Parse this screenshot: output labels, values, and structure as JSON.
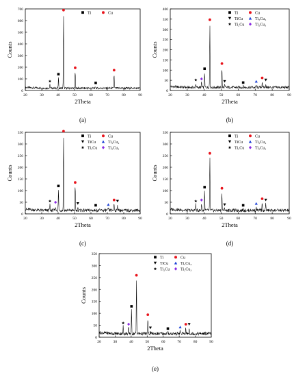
{
  "markers": {
    "Ti": {
      "symbol": "square",
      "color": "#000000"
    },
    "Cu": {
      "symbol": "circle",
      "color": "#e8141c"
    },
    "TiCu": {
      "symbol": "triangle-down",
      "color": "#000000"
    },
    "Ti3Cu4": {
      "symbol": "triangle-up",
      "color": "#1a3fd6"
    },
    "Ti2Cu": {
      "symbol": "star",
      "color": "#000000"
    },
    "Ti2Cu3": {
      "symbol": "diamond",
      "color": "#8a2be2"
    }
  },
  "chart_data": [
    {
      "type": "line",
      "panel_label": "(a)",
      "xlabel": "2Theta",
      "ylabel": "Counts",
      "xlim": [
        20,
        90
      ],
      "ylim": [
        0,
        700
      ],
      "xticks": [
        20,
        30,
        40,
        50,
        60,
        70,
        80,
        90
      ],
      "yticks": [
        0,
        100,
        200,
        300,
        400,
        500,
        600,
        700
      ],
      "baseline": 20,
      "peaks": [
        {
          "x": 35.0,
          "y": 50,
          "phase": "Ti2Cu"
        },
        {
          "x": 40.2,
          "y": 110,
          "phase": "Ti"
        },
        {
          "x": 43.3,
          "y": 660,
          "phase": "Cu"
        },
        {
          "x": 50.4,
          "y": 165,
          "phase": "Cu"
        },
        {
          "x": 62.9,
          "y": 35,
          "phase": "Ti"
        },
        {
          "x": 74.1,
          "y": 145,
          "phase": "Cu"
        }
      ],
      "legend": [
        {
          "label": "Ti",
          "phase": "Ti",
          "label_sub": ""
        },
        {
          "label": "Cu",
          "phase": "Cu",
          "label_sub": ""
        }
      ]
    },
    {
      "type": "line",
      "panel_label": "(b)",
      "xlabel": "2Theta",
      "ylabel": "Counts",
      "xlim": [
        20,
        90
      ],
      "ylim": [
        0,
        400
      ],
      "xticks": [
        20,
        30,
        40,
        50,
        60,
        70,
        80,
        90
      ],
      "yticks": [
        0,
        50,
        100,
        150,
        200,
        250,
        300,
        350,
        400
      ],
      "baseline": 15,
      "peaks": [
        {
          "x": 35.0,
          "y": 35,
          "phase": "Ti2Cu"
        },
        {
          "x": 38.4,
          "y": 40,
          "phase": "Ti2Cu3"
        },
        {
          "x": 40.2,
          "y": 90,
          "phase": "Ti"
        },
        {
          "x": 43.3,
          "y": 330,
          "phase": "Cu"
        },
        {
          "x": 50.4,
          "y": 115,
          "phase": "Cu"
        },
        {
          "x": 52.0,
          "y": 28,
          "phase": "TiCu"
        },
        {
          "x": 62.9,
          "y": 22,
          "phase": "Ti"
        },
        {
          "x": 70.6,
          "y": 28,
          "phase": "Ti3Cu4"
        },
        {
          "x": 74.1,
          "y": 45,
          "phase": "Cu"
        },
        {
          "x": 76.2,
          "y": 35,
          "phase": "TiCu"
        }
      ],
      "legend": [
        {
          "label": "Ti",
          "phase": "Ti",
          "label_sub": ""
        },
        {
          "label": "Cu",
          "phase": "Cu",
          "label_sub": ""
        },
        {
          "label": "TiCu",
          "phase": "TiCu",
          "label_sub": ""
        },
        {
          "label": "Ti3Cu4",
          "phase": "Ti3Cu4",
          "label_sub": "Ti₃Cu₄"
        },
        {
          "label": "Ti2Cu",
          "phase": "Ti2Cu",
          "label_sub": "Ti₂Cu"
        },
        {
          "label": "Ti2Cu3",
          "phase": "Ti2Cu3",
          "label_sub": "Ti₂Cu₃"
        }
      ]
    },
    {
      "type": "line",
      "panel_label": "(c)",
      "xlabel": "2Theta",
      "ylabel": "Counts",
      "xlim": [
        20,
        90
      ],
      "ylim": [
        0,
        350
      ],
      "xticks": [
        20,
        30,
        40,
        50,
        60,
        70,
        80,
        90
      ],
      "yticks": [
        0,
        50,
        100,
        150,
        200,
        250,
        300,
        350
      ],
      "baseline": 15,
      "peaks": [
        {
          "x": 35.0,
          "y": 40,
          "phase": "Ti2Cu"
        },
        {
          "x": 38.4,
          "y": 35,
          "phase": "Ti2Cu3"
        },
        {
          "x": 40.2,
          "y": 105,
          "phase": "Ti"
        },
        {
          "x": 43.3,
          "y": 340,
          "phase": "Cu"
        },
        {
          "x": 50.4,
          "y": 120,
          "phase": "Cu"
        },
        {
          "x": 52.0,
          "y": 30,
          "phase": "TiCu"
        },
        {
          "x": 62.9,
          "y": 22,
          "phase": "Ti"
        },
        {
          "x": 70.6,
          "y": 25,
          "phase": "Ti3Cu4"
        },
        {
          "x": 74.1,
          "y": 45,
          "phase": "Cu"
        },
        {
          "x": 76.2,
          "y": 40,
          "phase": "TiCu"
        }
      ],
      "legend": [
        {
          "label": "Ti",
          "phase": "Ti",
          "label_sub": ""
        },
        {
          "label": "Cu",
          "phase": "Cu",
          "label_sub": ""
        },
        {
          "label": "TiCu",
          "phase": "TiCu",
          "label_sub": ""
        },
        {
          "label": "Ti3Cu4",
          "phase": "Ti3Cu4",
          "label_sub": "Ti₃Cu₄"
        },
        {
          "label": "Ti2Cu",
          "phase": "Ti2Cu",
          "label_sub": "Ti₂Cu"
        },
        {
          "label": "Ti2Cu3",
          "phase": "Ti2Cu3",
          "label_sub": "Ti₂Cu₃"
        }
      ]
    },
    {
      "type": "line",
      "panel_label": "(d)",
      "xlabel": "2Theta",
      "ylabel": "Counts",
      "xlim": [
        20,
        90
      ],
      "ylim": [
        0,
        350
      ],
      "xticks": [
        20,
        30,
        40,
        50,
        60,
        70,
        80,
        90
      ],
      "yticks": [
        0,
        50,
        100,
        150,
        200,
        250,
        300,
        350
      ],
      "baseline": 15,
      "peaks": [
        {
          "x": 35.0,
          "y": 40,
          "phase": "Ti2Cu"
        },
        {
          "x": 38.4,
          "y": 45,
          "phase": "Ti2Cu3"
        },
        {
          "x": 40.2,
          "y": 100,
          "phase": "Ti"
        },
        {
          "x": 43.3,
          "y": 245,
          "phase": "Cu"
        },
        {
          "x": 50.4,
          "y": 95,
          "phase": "Cu"
        },
        {
          "x": 52.0,
          "y": 25,
          "phase": "TiCu"
        },
        {
          "x": 62.9,
          "y": 22,
          "phase": "Ti"
        },
        {
          "x": 70.6,
          "y": 30,
          "phase": "Ti3Cu4"
        },
        {
          "x": 74.1,
          "y": 50,
          "phase": "Cu"
        },
        {
          "x": 76.2,
          "y": 45,
          "phase": "TiCu"
        }
      ],
      "legend": [
        {
          "label": "Ti",
          "phase": "Ti",
          "label_sub": ""
        },
        {
          "label": "Cu",
          "phase": "Cu",
          "label_sub": ""
        },
        {
          "label": "TiCu",
          "phase": "TiCu",
          "label_sub": ""
        },
        {
          "label": "Ti3Cu4",
          "phase": "Ti3Cu4",
          "label_sub": "Ti₃Cu₄"
        },
        {
          "label": "Ti2Cu",
          "phase": "Ti2Cu",
          "label_sub": "Ti₂Cu"
        },
        {
          "label": "Ti2Cu3",
          "phase": "Ti2Cu3",
          "label_sub": "Ti₂Cu₃"
        }
      ]
    },
    {
      "type": "line",
      "panel_label": "(e)",
      "xlabel": "2Theta",
      "ylabel": "Counts",
      "xlim": [
        20,
        90
      ],
      "ylim": [
        0,
        350
      ],
      "xticks": [
        20,
        30,
        40,
        50,
        60,
        70,
        80,
        90
      ],
      "yticks": [
        0,
        50,
        100,
        150,
        200,
        250,
        300,
        350
      ],
      "baseline": 15,
      "peaks": [
        {
          "x": 35.0,
          "y": 45,
          "phase": "Ti2Cu"
        },
        {
          "x": 38.4,
          "y": 40,
          "phase": "Ti2Cu3"
        },
        {
          "x": 40.2,
          "y": 115,
          "phase": "Ti"
        },
        {
          "x": 43.3,
          "y": 245,
          "phase": "Cu"
        },
        {
          "x": 50.4,
          "y": 80,
          "phase": "Cu"
        },
        {
          "x": 52.0,
          "y": 25,
          "phase": "TiCu"
        },
        {
          "x": 62.9,
          "y": 22,
          "phase": "Ti"
        },
        {
          "x": 70.6,
          "y": 28,
          "phase": "Ti3Cu4"
        },
        {
          "x": 74.1,
          "y": 40,
          "phase": "Cu"
        },
        {
          "x": 76.2,
          "y": 40,
          "phase": "TiCu"
        }
      ],
      "legend": [
        {
          "label": "Ti",
          "phase": "Ti",
          "label_sub": ""
        },
        {
          "label": "Cu",
          "phase": "Cu",
          "label_sub": ""
        },
        {
          "label": "TiCu",
          "phase": "TiCu",
          "label_sub": ""
        },
        {
          "label": "Ti3Cu4",
          "phase": "Ti3Cu4",
          "label_sub": "Ti₃Cu₄"
        },
        {
          "label": "Ti2Cu",
          "phase": "Ti2Cu",
          "label_sub": "Ti₂Cu"
        },
        {
          "label": "Ti2Cu3",
          "phase": "Ti2Cu3",
          "label_sub": "Ti₂Cu₃"
        }
      ]
    }
  ]
}
